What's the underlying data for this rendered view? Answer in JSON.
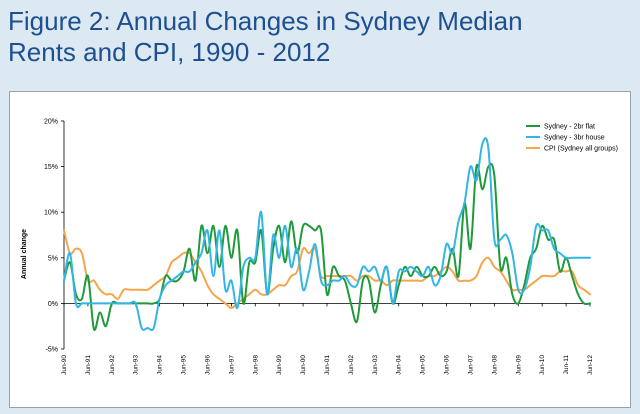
{
  "figure": {
    "title_line1": "Figure 2: Annual Changes in Sydney Median",
    "title_line2": "Rents and CPI, 1990 - 2012"
  },
  "colors": {
    "background": "#dce9f2",
    "title": "#1d4f91",
    "flat": "#1e9a3a",
    "house": "#33b5e5",
    "cpi": "#f5a54a"
  },
  "chart_data": {
    "type": "line",
    "title": "Figure 2: Annual Changes in Sydney Median Rents and CPI, 1990 - 2012",
    "xlabel": "",
    "ylabel": "Annual change",
    "ylim": [
      -5,
      20
    ],
    "xlim": [
      1990.5,
      2012.5
    ],
    "y_ticks": [
      {
        "value": 20,
        "label": "20%"
      },
      {
        "value": 15,
        "label": "15%"
      },
      {
        "value": 10,
        "label": "10%"
      },
      {
        "value": 5,
        "label": "5%"
      },
      {
        "value": 0,
        "label": "0%"
      },
      {
        "value": -5,
        "label": "-5%"
      }
    ],
    "x_ticks": [
      {
        "value": 1990.5,
        "label": "Jun-90"
      },
      {
        "value": 1991.5,
        "label": "Jun-91"
      },
      {
        "value": 1992.5,
        "label": "Jun-92"
      },
      {
        "value": 1993.5,
        "label": "Jun-93"
      },
      {
        "value": 1994.5,
        "label": "Jun-94"
      },
      {
        "value": 1995.5,
        "label": "Jun-95"
      },
      {
        "value": 1996.5,
        "label": "Jun-96"
      },
      {
        "value": 1997.5,
        "label": "Jun-97"
      },
      {
        "value": 1998.5,
        "label": "Jun-98"
      },
      {
        "value": 1999.5,
        "label": "Jun-99"
      },
      {
        "value": 2000.5,
        "label": "Jun-00"
      },
      {
        "value": 2001.5,
        "label": "Jun-01"
      },
      {
        "value": 2002.5,
        "label": "Jun-02"
      },
      {
        "value": 2003.5,
        "label": "Jun-03"
      },
      {
        "value": 2004.5,
        "label": "Jun-04"
      },
      {
        "value": 2005.5,
        "label": "Jun-05"
      },
      {
        "value": 2006.5,
        "label": "Jun-06"
      },
      {
        "value": 2007.5,
        "label": "Jun-07"
      },
      {
        "value": 2008.5,
        "label": "Jun-08"
      },
      {
        "value": 2009.5,
        "label": "Jun-09"
      },
      {
        "value": 2010.5,
        "label": "Jun-10"
      },
      {
        "value": 2011.5,
        "label": "Jun-11"
      },
      {
        "value": 2012.5,
        "label": "Jun-12"
      }
    ],
    "legend_position": "top-right",
    "series": [
      {
        "name": "Sydney - 2br flat",
        "color": "#1e9a3a",
        "x": [
          1990.5,
          1990.75,
          1991.0,
          1991.25,
          1991.5,
          1991.75,
          1992.0,
          1992.25,
          1992.5,
          1992.75,
          1993.0,
          1993.25,
          1993.5,
          1993.75,
          1994.0,
          1994.25,
          1994.5,
          1994.75,
          1995.0,
          1995.25,
          1995.5,
          1995.75,
          1996.0,
          1996.25,
          1996.5,
          1996.75,
          1997.0,
          1997.25,
          1997.5,
          1997.75,
          1998.0,
          1998.25,
          1998.5,
          1998.75,
          1999.0,
          1999.25,
          1999.5,
          1999.75,
          2000.0,
          2000.25,
          2000.5,
          2000.75,
          2001.0,
          2001.25,
          2001.5,
          2001.75,
          2002.0,
          2002.25,
          2002.5,
          2002.75,
          2003.0,
          2003.25,
          2003.5,
          2003.75,
          2004.0,
          2004.25,
          2004.5,
          2004.75,
          2005.0,
          2005.25,
          2005.5,
          2005.75,
          2006.0,
          2006.25,
          2006.5,
          2006.75,
          2007.0,
          2007.25,
          2007.5,
          2007.75,
          2008.0,
          2008.25,
          2008.5,
          2008.75,
          2009.0,
          2009.25,
          2009.5,
          2009.75,
          2010.0,
          2010.25,
          2010.5,
          2010.75,
          2011.0,
          2011.25,
          2011.5,
          2011.75,
          2012.0,
          2012.25,
          2012.5
        ],
        "values": [
          2.5,
          4.5,
          1.0,
          0.5,
          3.0,
          -2.8,
          -1.0,
          -2.5,
          0.0,
          0.0,
          0.0,
          0.0,
          0.0,
          0.0,
          0.0,
          0.0,
          0.5,
          3.0,
          2.5,
          2.5,
          3.5,
          6.0,
          2.5,
          8.5,
          5.5,
          8.5,
          4.0,
          8.5,
          5.0,
          8.0,
          0.0,
          4.5,
          4.5,
          8.0,
          1.0,
          6.0,
          8.5,
          4.5,
          9.0,
          5.5,
          8.5,
          8.5,
          8.0,
          8.0,
          1.0,
          4.0,
          3.0,
          2.5,
          0.0,
          -2.0,
          2.5,
          2.5,
          -1.0,
          2.0,
          4.0,
          0.0,
          2.0,
          4.0,
          3.0,
          4.0,
          3.0,
          3.0,
          4.0,
          3.0,
          3.5,
          6.0,
          3.0,
          11.0,
          6.0,
          15.0,
          12.5,
          15.0,
          14.0,
          4.0,
          5.0,
          1.0,
          0.0,
          2.0,
          5.0,
          6.0,
          8.5,
          7.0,
          7.0,
          3.5,
          5.0,
          3.0,
          1.0,
          0.0,
          0.0
        ]
      },
      {
        "name": "Sydney - 3br house",
        "color": "#33b5e5",
        "x": [
          1990.5,
          1990.75,
          1991.0,
          1991.25,
          1991.5,
          1991.75,
          1992.0,
          1992.25,
          1992.5,
          1992.75,
          1993.0,
          1993.25,
          1993.5,
          1993.75,
          1994.0,
          1994.25,
          1994.5,
          1994.75,
          1995.0,
          1995.25,
          1995.5,
          1995.75,
          1996.0,
          1996.25,
          1996.5,
          1996.75,
          1997.0,
          1997.25,
          1997.5,
          1997.75,
          1998.0,
          1998.25,
          1998.5,
          1998.75,
          1999.0,
          1999.25,
          1999.5,
          1999.75,
          2000.0,
          2000.25,
          2000.5,
          2000.75,
          2001.0,
          2001.25,
          2001.5,
          2001.75,
          2002.0,
          2002.25,
          2002.5,
          2002.75,
          2003.0,
          2003.25,
          2003.5,
          2003.75,
          2004.0,
          2004.25,
          2004.5,
          2004.75,
          2005.0,
          2005.25,
          2005.5,
          2005.75,
          2006.0,
          2006.25,
          2006.5,
          2006.75,
          2007.0,
          2007.25,
          2007.5,
          2007.75,
          2008.0,
          2008.25,
          2008.5,
          2008.75,
          2009.0,
          2009.25,
          2009.5,
          2009.75,
          2010.0,
          2010.25,
          2010.5,
          2010.75,
          2011.0,
          2011.25,
          2011.5,
          2011.75,
          2012.0,
          2012.25,
          2012.5
        ],
        "values": [
          2.5,
          5.5,
          0.0,
          0.0,
          0.0,
          0.0,
          0.0,
          0.0,
          0.0,
          0.0,
          0.0,
          0.0,
          0.0,
          -2.7,
          -2.7,
          -2.7,
          0.5,
          2.0,
          2.5,
          3.0,
          3.5,
          3.5,
          4.5,
          5.5,
          8.0,
          3.0,
          8.0,
          1.5,
          2.5,
          -0.5,
          4.0,
          5.0,
          5.0,
          10.0,
          1.0,
          7.5,
          5.0,
          8.5,
          4.0,
          6.0,
          1.5,
          3.5,
          6.5,
          2.5,
          2.0,
          2.5,
          2.5,
          3.0,
          2.0,
          2.0,
          4.0,
          3.5,
          4.0,
          2.5,
          4.0,
          0.0,
          3.5,
          3.5,
          4.0,
          3.5,
          3.0,
          4.0,
          2.0,
          3.0,
          6.5,
          5.5,
          9.0,
          11.0,
          15.0,
          13.5,
          17.5,
          17.0,
          7.0,
          7.0,
          7.5,
          5.5,
          1.5,
          1.5,
          4.0,
          8.5,
          8.0,
          8.0,
          6.0,
          5.5,
          5.0,
          5.0,
          5.0,
          5.0,
          5.0
        ]
      },
      {
        "name": "CPI (Sydney all groups)",
        "color": "#f5a54a",
        "x": [
          1990.5,
          1990.75,
          1991.0,
          1991.25,
          1991.5,
          1991.75,
          1992.0,
          1992.25,
          1992.5,
          1992.75,
          1993.0,
          1993.25,
          1993.5,
          1993.75,
          1994.0,
          1994.25,
          1994.5,
          1994.75,
          1995.0,
          1995.25,
          1995.5,
          1995.75,
          1996.0,
          1996.25,
          1996.5,
          1996.75,
          1997.0,
          1997.25,
          1997.5,
          1997.75,
          1998.0,
          1998.25,
          1998.5,
          1998.75,
          1999.0,
          1999.25,
          1999.5,
          1999.75,
          2000.0,
          2000.25,
          2000.5,
          2000.75,
          2001.0,
          2001.25,
          2001.5,
          2001.75,
          2002.0,
          2002.25,
          2002.5,
          2002.75,
          2003.0,
          2003.25,
          2003.5,
          2003.75,
          2004.0,
          2004.25,
          2004.5,
          2004.75,
          2005.0,
          2005.25,
          2005.5,
          2005.75,
          2006.0,
          2006.25,
          2006.5,
          2006.75,
          2007.0,
          2007.25,
          2007.5,
          2007.75,
          2008.0,
          2008.25,
          2008.5,
          2008.75,
          2009.0,
          2009.25,
          2009.5,
          2009.75,
          2010.0,
          2010.25,
          2010.5,
          2010.75,
          2011.0,
          2011.25,
          2011.5,
          2011.75,
          2012.0,
          2012.25,
          2012.5
        ],
        "values": [
          8.0,
          5.5,
          6.0,
          5.5,
          2.5,
          2.5,
          1.5,
          1.0,
          1.0,
          0.5,
          1.5,
          1.5,
          1.5,
          1.5,
          1.5,
          2.0,
          2.5,
          3.0,
          4.5,
          5.0,
          5.5,
          5.5,
          4.5,
          3.5,
          2.0,
          1.0,
          0.5,
          0.0,
          -0.5,
          0.0,
          0.5,
          1.0,
          1.5,
          1.0,
          1.0,
          1.5,
          2.0,
          2.0,
          3.0,
          3.5,
          6.0,
          5.5,
          6.0,
          3.0,
          3.0,
          3.0,
          3.0,
          3.0,
          3.0,
          2.5,
          3.0,
          3.0,
          2.5,
          2.5,
          2.0,
          2.5,
          2.5,
          2.5,
          2.5,
          2.5,
          2.5,
          3.0,
          3.0,
          3.5,
          4.0,
          3.5,
          2.5,
          2.5,
          2.5,
          3.0,
          4.5,
          5.0,
          4.0,
          3.5,
          2.5,
          1.5,
          1.5,
          1.5,
          2.0,
          2.5,
          3.0,
          3.0,
          3.0,
          3.5,
          3.5,
          3.5,
          2.0,
          1.5,
          1.0
        ]
      }
    ]
  }
}
